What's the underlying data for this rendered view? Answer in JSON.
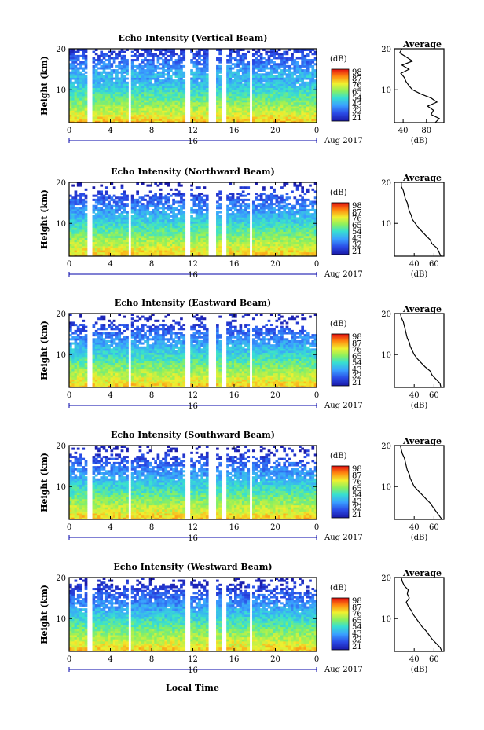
{
  "figure": {
    "xlabel": "Local Time",
    "date_month": "Aug 2017",
    "day_label": "16",
    "colorbar_unit": "(dB)",
    "colorbar_ticks": [
      "98",
      "87",
      "76",
      "65",
      "54",
      "43",
      "32",
      "21"
    ],
    "avg_title": "Average",
    "avg_xlabel": "(dB)"
  },
  "chart_data": [
    {
      "type": "heatmap",
      "title": "Echo Intensity (Vertical Beam)",
      "ylabel": "Height (km)",
      "xlabel": "Local Time",
      "x_ticks": [
        "0",
        "4",
        "8",
        "12",
        "16",
        "20",
        "0"
      ],
      "y_ticks": [
        "20",
        "10"
      ],
      "xlim": [
        0,
        24
      ],
      "ylim": [
        2,
        20
      ],
      "color_range_db": [
        21,
        98
      ],
      "gaps_hours": [
        [
          1.8,
          2.2
        ],
        [
          5.8,
          6.1
        ],
        [
          11.3,
          11.7
        ],
        [
          13.5,
          14.2
        ],
        [
          14.7,
          15.3
        ],
        [
          17.5,
          17.8
        ]
      ],
      "echo_top_km": 20,
      "average_profile": {
        "xlim": [
          25,
          110
        ],
        "x_ticks": [
          "40",
          "80"
        ],
        "height_km": [
          2,
          3,
          4,
          5,
          6,
          7,
          8,
          9,
          10,
          11,
          12,
          13,
          14,
          15,
          16,
          17,
          18,
          19,
          20
        ],
        "db": [
          95,
          102,
          88,
          92,
          82,
          98,
          88,
          70,
          56,
          50,
          45,
          42,
          36,
          50,
          38,
          56,
          45,
          34,
          38
        ]
      }
    },
    {
      "type": "heatmap",
      "title": "Echo Intensity (Northward Beam)",
      "ylabel": "Height (km)",
      "xlabel": "Local Time",
      "x_ticks": [
        "0",
        "4",
        "8",
        "12",
        "16",
        "20",
        "0"
      ],
      "y_ticks": [
        "20",
        "10"
      ],
      "xlim": [
        0,
        24
      ],
      "ylim": [
        2,
        20
      ],
      "color_range_db": [
        21,
        98
      ],
      "gaps_hours": [
        [
          1.8,
          2.2
        ],
        [
          5.8,
          6.1
        ],
        [
          11.3,
          11.7
        ],
        [
          13.5,
          14.2
        ],
        [
          14.7,
          15.3
        ],
        [
          17.5,
          17.8
        ]
      ],
      "echo_top_km": 17.5,
      "average_profile": {
        "xlim": [
          20,
          70
        ],
        "x_ticks": [
          "40",
          "60"
        ],
        "height_km": [
          2,
          3,
          4,
          5,
          6,
          7,
          8,
          9,
          10,
          11,
          12,
          13,
          14,
          15,
          16,
          17,
          18,
          19,
          20
        ],
        "db": [
          67,
          65,
          63,
          58,
          56,
          52,
          48,
          44,
          41,
          38,
          37,
          35,
          34,
          33,
          31,
          30,
          29,
          27,
          27
        ]
      }
    },
    {
      "type": "heatmap",
      "title": "Echo Intensity (Eastward Beam)",
      "ylabel": "Height (km)",
      "xlabel": "Local Time",
      "x_ticks": [
        "0",
        "4",
        "8",
        "12",
        "16",
        "20",
        "0"
      ],
      "y_ticks": [
        "20",
        "10"
      ],
      "xlim": [
        0,
        24
      ],
      "ylim": [
        2,
        20
      ],
      "color_range_db": [
        21,
        98
      ],
      "gaps_hours": [
        [
          1.8,
          2.2
        ],
        [
          5.8,
          6.1
        ],
        [
          11.3,
          11.7
        ],
        [
          13.5,
          14.2
        ],
        [
          14.7,
          15.3
        ],
        [
          17.5,
          17.8
        ]
      ],
      "echo_top_km": 17.5,
      "average_profile": {
        "xlim": [
          20,
          70
        ],
        "x_ticks": [
          "40",
          "60"
        ],
        "height_km": [
          2,
          3,
          4,
          5,
          6,
          7,
          8,
          9,
          10,
          11,
          12,
          13,
          14,
          15,
          16,
          17,
          18,
          19,
          20
        ],
        "db": [
          67,
          66,
          62,
          58,
          56,
          51,
          47,
          43,
          40,
          38,
          36,
          35,
          33,
          32,
          31,
          30,
          29,
          27,
          26
        ]
      }
    },
    {
      "type": "heatmap",
      "title": "Echo Intensity (Southward Beam)",
      "ylabel": "Height (km)",
      "xlabel": "Local Time",
      "x_ticks": [
        "0",
        "4",
        "8",
        "12",
        "16",
        "20",
        "0"
      ],
      "y_ticks": [
        "20",
        "10"
      ],
      "xlim": [
        0,
        24
      ],
      "ylim": [
        2,
        20
      ],
      "color_range_db": [
        21,
        98
      ],
      "gaps_hours": [
        [
          1.8,
          2.2
        ],
        [
          5.8,
          6.1
        ],
        [
          11.3,
          11.7
        ],
        [
          13.5,
          14.2
        ],
        [
          14.7,
          15.3
        ],
        [
          17.5,
          17.8
        ]
      ],
      "echo_top_km": 17.5,
      "average_profile": {
        "xlim": [
          20,
          70
        ],
        "x_ticks": [
          "40",
          "60"
        ],
        "height_km": [
          2,
          3,
          4,
          5,
          6,
          7,
          8,
          9,
          10,
          11,
          12,
          13,
          14,
          15,
          16,
          17,
          18,
          19,
          20
        ],
        "db": [
          68,
          65,
          62,
          59,
          56,
          52,
          48,
          44,
          40,
          38,
          36,
          35,
          33,
          32,
          31,
          30,
          28,
          27,
          26
        ]
      }
    },
    {
      "type": "heatmap",
      "title": "Echo Intensity (Westward Beam)",
      "ylabel": "Height (km)",
      "xlabel": "Local Time",
      "x_ticks": [
        "0",
        "4",
        "8",
        "12",
        "16",
        "20",
        "0"
      ],
      "y_ticks": [
        "20",
        "10"
      ],
      "xlim": [
        0,
        24
      ],
      "ylim": [
        2,
        20
      ],
      "color_range_db": [
        21,
        98
      ],
      "gaps_hours": [
        [
          1.8,
          2.2
        ],
        [
          5.8,
          6.1
        ],
        [
          11.3,
          11.7
        ],
        [
          13.5,
          14.2
        ],
        [
          14.7,
          15.3
        ],
        [
          17.5,
          17.8
        ]
      ],
      "echo_top_km": 18.5,
      "average_profile": {
        "xlim": [
          20,
          70
        ],
        "x_ticks": [
          "40",
          "60"
        ],
        "height_km": [
          2,
          3,
          4,
          5,
          6,
          7,
          8,
          9,
          10,
          11,
          12,
          13,
          14,
          15,
          16,
          17,
          18,
          19,
          20
        ],
        "db": [
          68,
          66,
          62,
          58,
          55,
          52,
          48,
          45,
          42,
          39,
          37,
          34,
          32,
          35,
          33,
          34,
          30,
          28,
          27
        ]
      }
    }
  ]
}
